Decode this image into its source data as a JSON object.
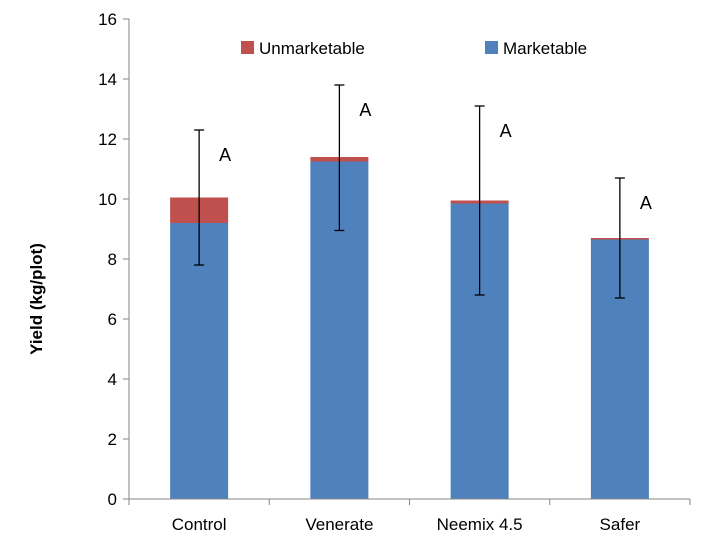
{
  "chart_data": {
    "type": "bar",
    "stacked": true,
    "categories": [
      "Control",
      "Venerate",
      "Neemix 4.5",
      "Safer"
    ],
    "series": [
      {
        "name": "Marketable",
        "color": "#4F81BD",
        "values": [
          9.2,
          11.25,
          9.85,
          8.65
        ]
      },
      {
        "name": "Unmarketable",
        "color": "#C0504D",
        "values": [
          0.85,
          0.15,
          0.1,
          0.05
        ]
      }
    ],
    "error_bars": {
      "upper": [
        12.3,
        13.8,
        13.1,
        10.7
      ],
      "lower": [
        7.8,
        8.95,
        6.8,
        6.7
      ]
    },
    "annotations": [
      "A",
      "A",
      "A",
      "A"
    ],
    "title": "",
    "xlabel": "",
    "ylabel": "Yield (kg/plot)",
    "ylim": [
      0,
      16
    ],
    "yticks": [
      0,
      2,
      4,
      6,
      8,
      10,
      12,
      14,
      16
    ],
    "grid": false,
    "legend": {
      "position": "top-center",
      "entries": [
        "Unmarketable",
        "Marketable"
      ]
    }
  }
}
